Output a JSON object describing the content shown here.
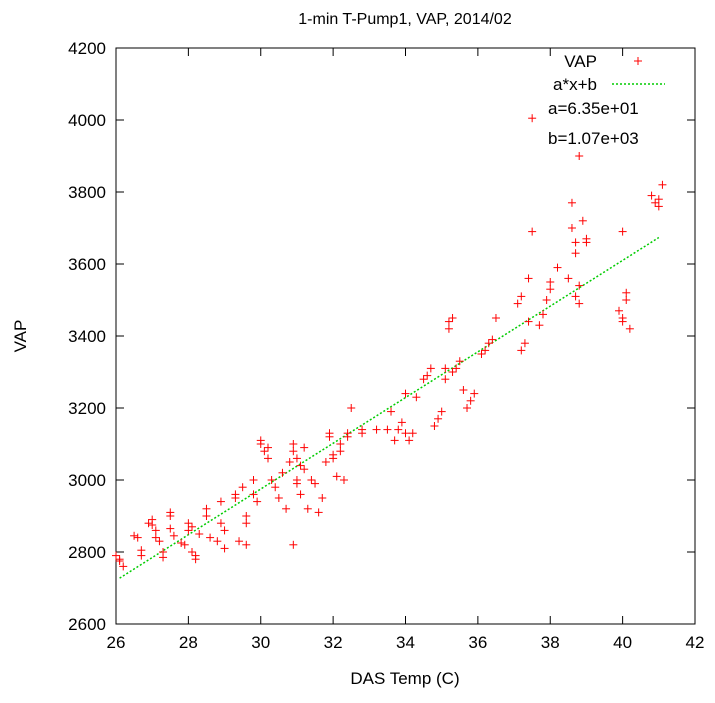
{
  "chart_data": {
    "type": "scatter",
    "title": "1-min T-Pump1, VAP, 2014/02",
    "xlabel": "DAS Temp (C)",
    "ylabel": "VAP",
    "xlim": [
      26,
      42
    ],
    "ylim": [
      2600,
      4200
    ],
    "x_ticks": [
      "26",
      "28",
      "30",
      "32",
      "34",
      "36",
      "38",
      "40",
      "42"
    ],
    "y_ticks": [
      "2600",
      "2800",
      "3000",
      "3200",
      "3400",
      "3600",
      "3800",
      "4000",
      "4200"
    ],
    "legend_position": "top-right",
    "series": [
      {
        "name": "VAP",
        "marker": "plus",
        "color": "#ff0000",
        "points": [
          [
            26.0,
            2790
          ],
          [
            26.1,
            2775
          ],
          [
            26.1,
            2780
          ],
          [
            26.2,
            2760
          ],
          [
            26.5,
            2845
          ],
          [
            26.6,
            2840
          ],
          [
            26.7,
            2805
          ],
          [
            26.7,
            2790
          ],
          [
            26.9,
            2880
          ],
          [
            27.0,
            2875
          ],
          [
            27.0,
            2890
          ],
          [
            27.1,
            2860
          ],
          [
            27.1,
            2840
          ],
          [
            27.2,
            2830
          ],
          [
            27.3,
            2800
          ],
          [
            27.3,
            2785
          ],
          [
            27.5,
            2910
          ],
          [
            27.5,
            2900
          ],
          [
            27.5,
            2865
          ],
          [
            27.6,
            2845
          ],
          [
            27.8,
            2825
          ],
          [
            27.9,
            2820
          ],
          [
            28.0,
            2860
          ],
          [
            28.0,
            2880
          ],
          [
            28.1,
            2870
          ],
          [
            28.1,
            2800
          ],
          [
            28.2,
            2790
          ],
          [
            28.2,
            2780
          ],
          [
            28.3,
            2850
          ],
          [
            28.5,
            2900
          ],
          [
            28.5,
            2920
          ],
          [
            28.6,
            2840
          ],
          [
            28.8,
            2830
          ],
          [
            28.9,
            2940
          ],
          [
            28.9,
            2880
          ],
          [
            29.0,
            2860
          ],
          [
            29.0,
            2810
          ],
          [
            29.3,
            2960
          ],
          [
            29.3,
            2950
          ],
          [
            29.4,
            2830
          ],
          [
            29.5,
            2980
          ],
          [
            29.6,
            2900
          ],
          [
            29.6,
            2880
          ],
          [
            29.6,
            2820
          ],
          [
            29.8,
            3000
          ],
          [
            29.8,
            2960
          ],
          [
            29.9,
            2940
          ],
          [
            30.0,
            3110
          ],
          [
            30.0,
            3100
          ],
          [
            30.1,
            3080
          ],
          [
            30.2,
            3060
          ],
          [
            30.2,
            3090
          ],
          [
            30.3,
            3000
          ],
          [
            30.4,
            2980
          ],
          [
            30.5,
            2950
          ],
          [
            30.6,
            3020
          ],
          [
            30.7,
            2920
          ],
          [
            30.8,
            3050
          ],
          [
            30.9,
            3080
          ],
          [
            30.9,
            3100
          ],
          [
            30.9,
            2820
          ],
          [
            31.0,
            3060
          ],
          [
            31.0,
            3000
          ],
          [
            31.0,
            2990
          ],
          [
            31.1,
            2960
          ],
          [
            31.1,
            3040
          ],
          [
            31.2,
            3090
          ],
          [
            31.2,
            3030
          ],
          [
            31.3,
            2920
          ],
          [
            31.4,
            3000
          ],
          [
            31.5,
            2990
          ],
          [
            31.6,
            2910
          ],
          [
            31.7,
            2950
          ],
          [
            31.8,
            3050
          ],
          [
            31.9,
            3120
          ],
          [
            31.9,
            3130
          ],
          [
            32.0,
            3060
          ],
          [
            32.0,
            3070
          ],
          [
            32.1,
            3010
          ],
          [
            32.2,
            3100
          ],
          [
            32.2,
            3080
          ],
          [
            32.3,
            3000
          ],
          [
            32.4,
            3120
          ],
          [
            32.4,
            3130
          ],
          [
            32.5,
            3200
          ],
          [
            32.8,
            3140
          ],
          [
            32.8,
            3130
          ],
          [
            33.2,
            3140
          ],
          [
            33.5,
            3140
          ],
          [
            33.6,
            3190
          ],
          [
            33.7,
            3110
          ],
          [
            33.8,
            3140
          ],
          [
            33.9,
            3160
          ],
          [
            34.0,
            3240
          ],
          [
            34.0,
            3130
          ],
          [
            34.1,
            3110
          ],
          [
            34.2,
            3130
          ],
          [
            34.3,
            3230
          ],
          [
            34.5,
            3280
          ],
          [
            34.6,
            3290
          ],
          [
            34.7,
            3310
          ],
          [
            34.8,
            3150
          ],
          [
            34.9,
            3170
          ],
          [
            35.0,
            3190
          ],
          [
            35.1,
            3310
          ],
          [
            35.1,
            3280
          ],
          [
            35.2,
            3420
          ],
          [
            35.2,
            3440
          ],
          [
            35.3,
            3450
          ],
          [
            35.3,
            3300
          ],
          [
            35.4,
            3310
          ],
          [
            35.5,
            3330
          ],
          [
            35.6,
            3250
          ],
          [
            35.7,
            3200
          ],
          [
            35.8,
            3220
          ],
          [
            35.9,
            3240
          ],
          [
            36.1,
            3350
          ],
          [
            36.2,
            3360
          ],
          [
            36.3,
            3380
          ],
          [
            36.4,
            3390
          ],
          [
            36.5,
            3450
          ],
          [
            37.1,
            3490
          ],
          [
            37.2,
            3510
          ],
          [
            37.2,
            3360
          ],
          [
            37.3,
            3380
          ],
          [
            37.4,
            3440
          ],
          [
            37.4,
            3560
          ],
          [
            37.5,
            3690
          ],
          [
            37.5,
            4005
          ],
          [
            37.7,
            3430
          ],
          [
            37.8,
            3460
          ],
          [
            37.9,
            3500
          ],
          [
            38.0,
            3530
          ],
          [
            38.0,
            3550
          ],
          [
            38.2,
            3590
          ],
          [
            38.5,
            3560
          ],
          [
            38.6,
            3700
          ],
          [
            38.6,
            3770
          ],
          [
            38.7,
            3660
          ],
          [
            38.7,
            3630
          ],
          [
            38.7,
            3510
          ],
          [
            38.8,
            3540
          ],
          [
            38.8,
            3490
          ],
          [
            38.8,
            3900
          ],
          [
            38.9,
            3720
          ],
          [
            39.0,
            3660
          ],
          [
            39.0,
            3670
          ],
          [
            39.9,
            3470
          ],
          [
            40.0,
            3450
          ],
          [
            40.0,
            3440
          ],
          [
            40.0,
            3690
          ],
          [
            40.1,
            3520
          ],
          [
            40.1,
            3500
          ],
          [
            40.2,
            3420
          ],
          [
            40.8,
            3790
          ],
          [
            40.9,
            3770
          ],
          [
            41.0,
            3760
          ],
          [
            41.0,
            3780
          ],
          [
            41.1,
            3820
          ]
        ]
      },
      {
        "name": "a*x+b",
        "marker": "dotted-line",
        "color": "#00cc00",
        "a": 63.5,
        "b": 1070
      }
    ],
    "annotations": [
      "a=6.35e+01",
      "b=1.07e+03"
    ]
  }
}
